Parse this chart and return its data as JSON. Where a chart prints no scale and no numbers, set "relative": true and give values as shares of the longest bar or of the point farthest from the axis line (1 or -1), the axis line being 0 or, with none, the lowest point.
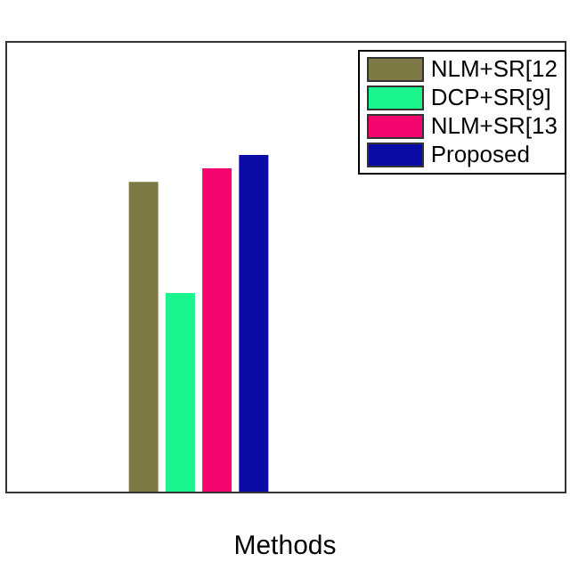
{
  "chart_data": {
    "type": "bar",
    "xlabel": "Methods",
    "categories": [
      null
    ],
    "relative": true,
    "legend": "top right",
    "series": [
      {
        "name": "NLM+SR[12",
        "color": "#7f7a45",
        "values": [
          0.92
        ]
      },
      {
        "name": "DCP+SR[9]",
        "color": "#19f58c",
        "values": [
          0.59
        ]
      },
      {
        "name": "NLM+SR[13",
        "color": "#f5066e",
        "values": [
          0.96
        ]
      },
      {
        "name": "Proposed",
        "color": "#0a0aa5",
        "values": [
          1
        ]
      }
    ]
  }
}
